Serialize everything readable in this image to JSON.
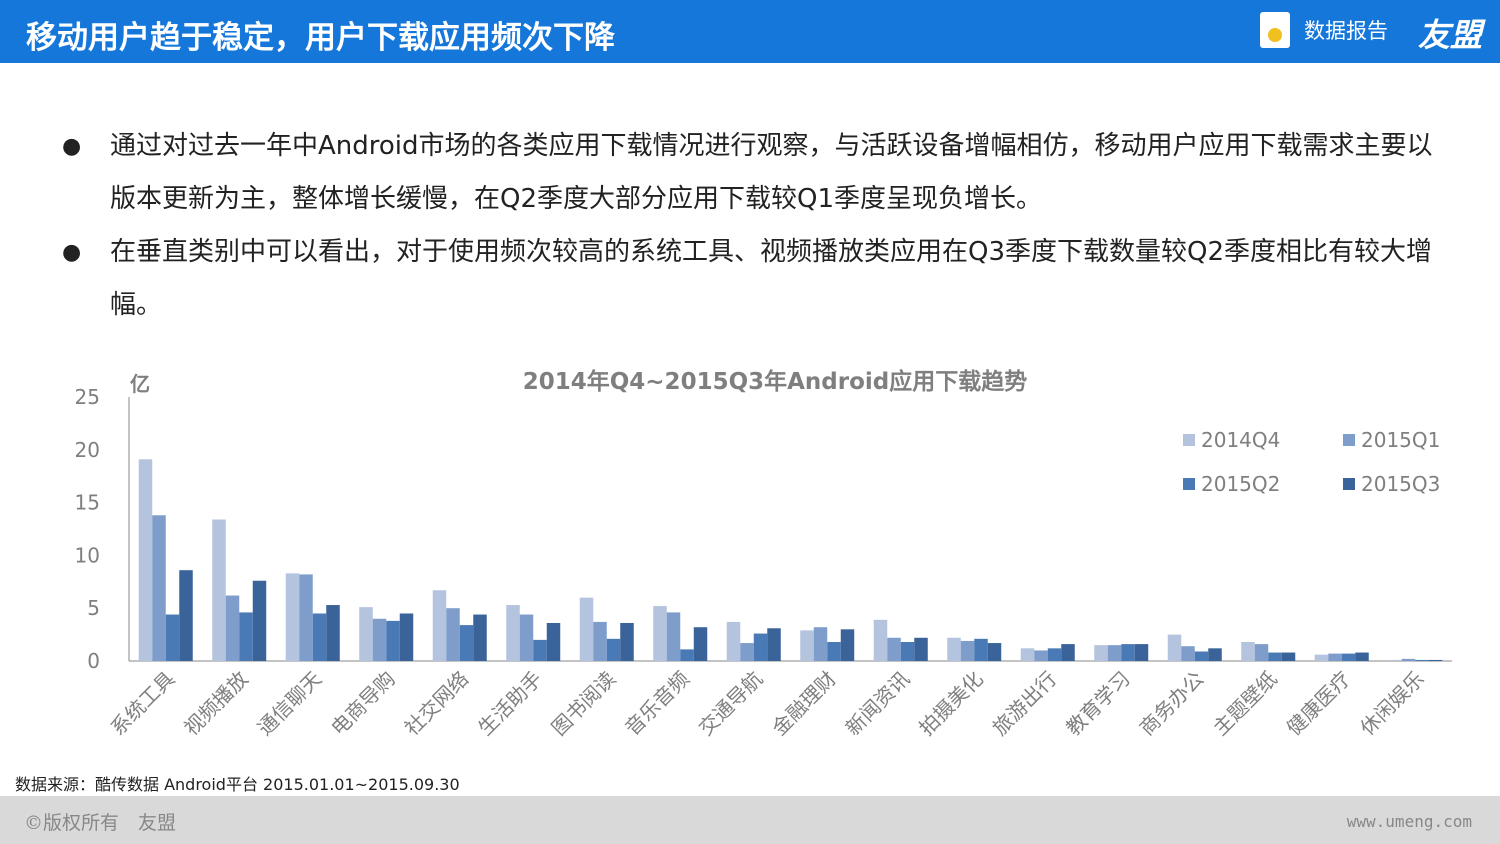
{
  "header": {
    "title": "移动用户趋于稳定，用户下载应用频次下降",
    "report_label": "数据报告",
    "brand": "友盟"
  },
  "bullets": [
    "通过对过去一年中Android市场的各类应用下载情况进行观察，与活跃设备增幅相仿，移动用户应用下载需求主要以版本更新为主，整体增长缓慢，在Q2季度大部分应用下载较Q1季度呈现负增长。",
    "在垂直类别中可以看出，对于使用频次较高的系统工具、视频播放类应用在Q3季度下载数量较Q2季度相比有较大增幅。"
  ],
  "chart_data": {
    "type": "bar",
    "title": "2014年Q4~2015Q3年Android应用下载趋势",
    "ylabel": "亿",
    "xlabel": "",
    "ylim": [
      0,
      25
    ],
    "yticks": [
      0,
      5,
      10,
      15,
      20,
      25
    ],
    "grid": false,
    "legend": "top-right",
    "categories": [
      "系统工具",
      "视频播放",
      "通信聊天",
      "电商导购",
      "社交网络",
      "生活助手",
      "图书阅读",
      "音乐音频",
      "交通导航",
      "金融理财",
      "新闻资讯",
      "拍摄美化",
      "旅游出行",
      "教育学习",
      "商务办公",
      "主题壁纸",
      "健康医疗",
      "休闲娱乐"
    ],
    "series": [
      {
        "name": "2014Q4",
        "color": "#b4c3de",
        "values": [
          19.1,
          13.4,
          8.3,
          5.1,
          6.7,
          5.3,
          6.0,
          5.2,
          3.7,
          2.9,
          3.9,
          2.2,
          1.2,
          1.5,
          2.5,
          1.8,
          0.6,
          0.1
        ]
      },
      {
        "name": "2015Q1",
        "color": "#7f9dcb",
        "values": [
          13.8,
          6.2,
          8.2,
          4.0,
          5.0,
          4.4,
          3.7,
          4.6,
          1.7,
          3.2,
          2.2,
          1.9,
          1.0,
          1.5,
          1.4,
          1.6,
          0.7,
          0.2
        ]
      },
      {
        "name": "2015Q2",
        "color": "#4a7ab5",
        "values": [
          4.4,
          4.6,
          4.5,
          3.8,
          3.4,
          2.0,
          2.1,
          1.1,
          2.6,
          1.8,
          1.8,
          2.1,
          1.2,
          1.6,
          0.9,
          0.8,
          0.7,
          0.1
        ]
      },
      {
        "name": "2015Q3",
        "color": "#3a6399",
        "values": [
          8.6,
          7.6,
          5.3,
          4.5,
          4.4,
          3.6,
          3.6,
          3.2,
          3.1,
          3.0,
          2.2,
          1.7,
          1.6,
          1.6,
          1.2,
          0.8,
          0.8,
          0.1
        ]
      }
    ]
  },
  "source": "数据来源：酷传数据 Android平台 2015.01.01~2015.09.30",
  "footer": {
    "copyright": "©版权所有　友盟",
    "url": "www.umeng.com"
  }
}
